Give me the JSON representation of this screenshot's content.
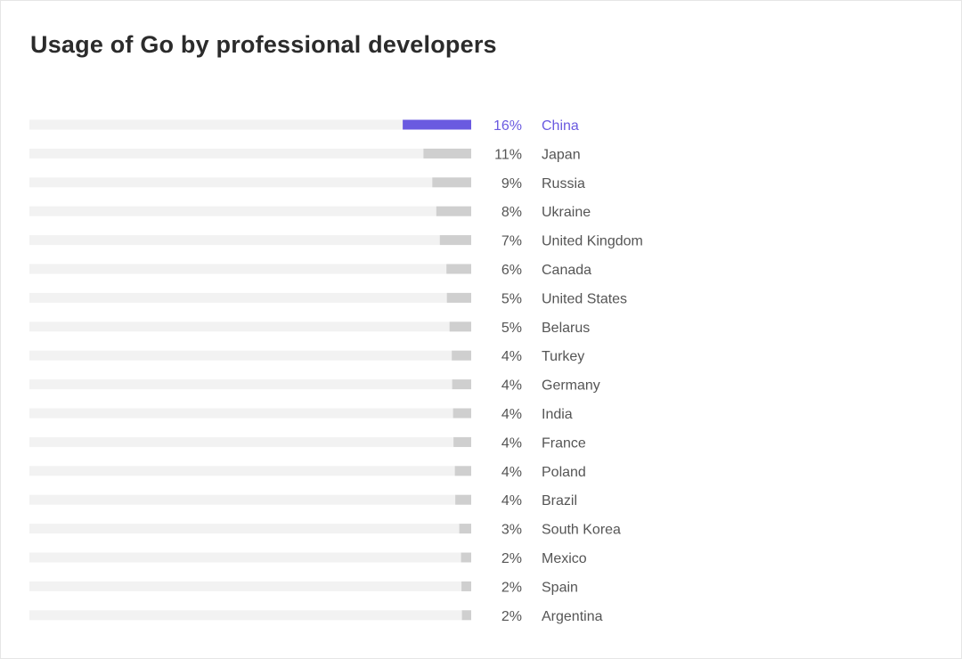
{
  "title": "Usage of Go by professional developers",
  "colors": {
    "highlight": "#6a5ae0",
    "bar": "#cfcfcf",
    "track": "#f2f2f2",
    "text": "#555555"
  },
  "chart_data": {
    "type": "bar",
    "orientation": "horizontal",
    "title": "Usage of Go by professional developers",
    "xlabel": "",
    "ylabel": "",
    "xlim": [
      0,
      100
    ],
    "highlight_index": 0,
    "grid": false,
    "categories": [
      "China",
      "Japan",
      "Russia",
      "Ukraine",
      "United Kingdom",
      "Canada",
      "United States",
      "Belarus",
      "Turkey",
      "Germany",
      "India",
      "France",
      "Poland",
      "Brazil",
      "South Korea",
      "Mexico",
      "Spain",
      "Argentina"
    ],
    "values": [
      15.5,
      10.8,
      8.8,
      7.9,
      7.1,
      5.6,
      5.5,
      4.9,
      4.4,
      4.3,
      4.1,
      4.0,
      3.7,
      3.6,
      2.7,
      2.3,
      2.2,
      2.1
    ],
    "value_labels": [
      "16%",
      "11%",
      "9%",
      "8%",
      "7%",
      "6%",
      "5%",
      "5%",
      "4%",
      "4%",
      "4%",
      "4%",
      "4%",
      "4%",
      "3%",
      "2%",
      "2%",
      "2%"
    ]
  }
}
